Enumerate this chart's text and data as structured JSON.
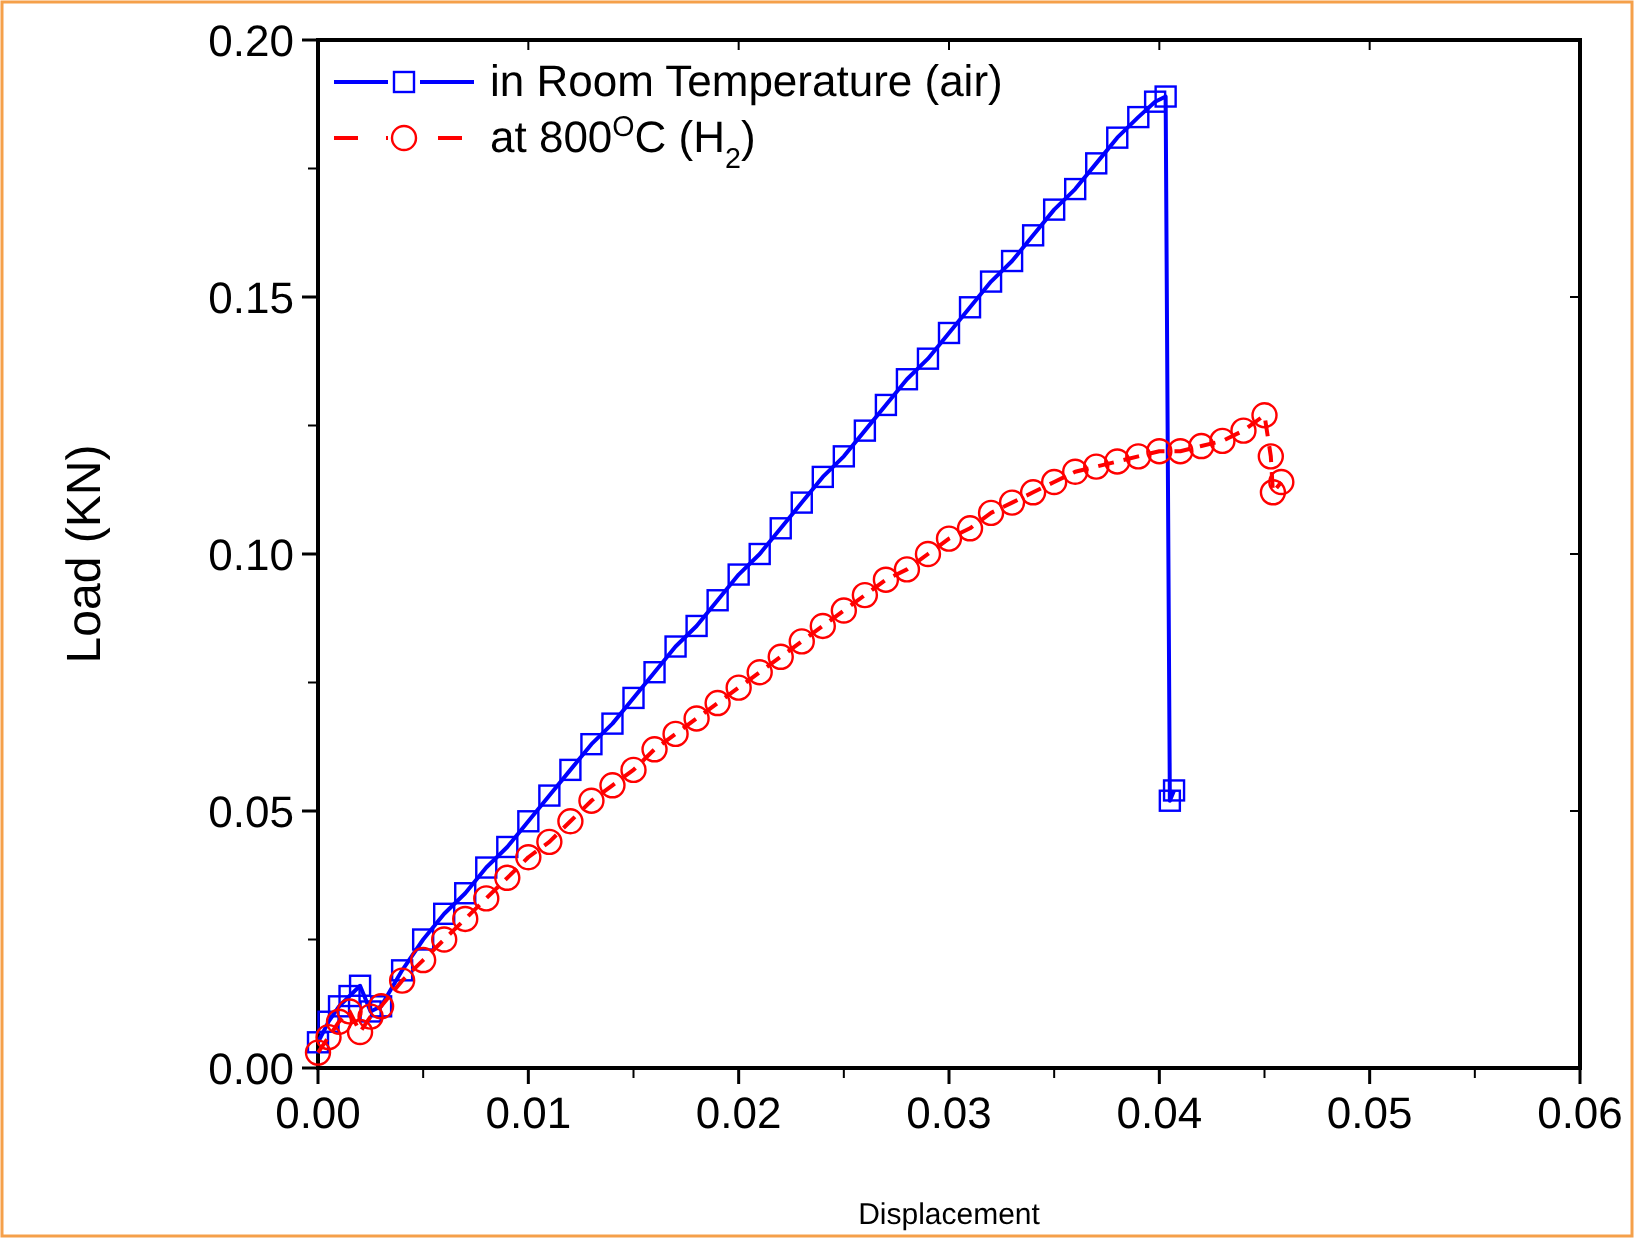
{
  "chart_data": {
    "type": "line",
    "xlabel": "Displacement",
    "ylabel": "Load (KN)",
    "xlim": [
      0,
      0.06
    ],
    "xticks": [
      {
        "value": 0,
        "label": "0.00"
      },
      0.01,
      0.02,
      0.03,
      0.04,
      0.05,
      0.06
    ],
    "ylim": [
      0,
      0.2
    ],
    "yticks": [
      {
        "value": 0,
        "label": "0.00"
      },
      0.05,
      {
        "value": 0.1,
        "label": "0.10"
      },
      0.15,
      {
        "value": 0.2,
        "label": "0.20"
      }
    ],
    "grid": false,
    "legend": "top left",
    "series": [
      {
        "name": "in Room Temperature (air)",
        "color": "#0000ff",
        "marker": "square",
        "line_style": "solid",
        "x": [
          0,
          0.0005,
          0.001,
          0.0015,
          0.002,
          0.0025,
          0.003,
          0.004,
          0.005,
          0.006,
          0.007,
          0.008,
          0.009,
          0.01,
          0.011,
          0.012,
          0.013,
          0.014,
          0.015,
          0.016,
          0.017,
          0.018,
          0.019,
          0.02,
          0.021,
          0.022,
          0.023,
          0.024,
          0.025,
          0.026,
          0.027,
          0.028,
          0.029,
          0.03,
          0.031,
          0.032,
          0.033,
          0.034,
          0.035,
          0.036,
          0.037,
          0.038,
          0.039,
          0.0398,
          0.0403,
          0.0405,
          0.0407
        ],
        "values": [
          0.005,
          0.009,
          0.012,
          0.014,
          0.016,
          0.011,
          0.012,
          0.019,
          0.025,
          0.03,
          0.034,
          0.039,
          0.043,
          0.048,
          0.053,
          0.058,
          0.063,
          0.067,
          0.072,
          0.077,
          0.082,
          0.086,
          0.091,
          0.096,
          0.1,
          0.105,
          0.11,
          0.115,
          0.119,
          0.124,
          0.129,
          0.134,
          0.138,
          0.143,
          0.148,
          0.153,
          0.157,
          0.162,
          0.167,
          0.171,
          0.176,
          0.181,
          0.185,
          0.188,
          0.189,
          0.052,
          0.054
        ]
      },
      {
        "name": "at 800$^{O}$C (H$_{2}$)",
        "color": "#ff0000",
        "marker": "circle",
        "line_style": "dashed",
        "x": [
          0,
          0.0005,
          0.001,
          0.0015,
          0.002,
          0.0025,
          0.003,
          0.004,
          0.005,
          0.006,
          0.007,
          0.008,
          0.009,
          0.01,
          0.011,
          0.012,
          0.013,
          0.014,
          0.015,
          0.016,
          0.017,
          0.018,
          0.019,
          0.02,
          0.021,
          0.022,
          0.023,
          0.024,
          0.025,
          0.026,
          0.027,
          0.028,
          0.029,
          0.03,
          0.031,
          0.032,
          0.033,
          0.034,
          0.035,
          0.036,
          0.037,
          0.038,
          0.039,
          0.04,
          0.041,
          0.042,
          0.043,
          0.044,
          0.045,
          0.0453,
          0.0454,
          0.0458
        ],
        "values": [
          0.003,
          0.006,
          0.009,
          0.011,
          0.007,
          0.01,
          0.012,
          0.017,
          0.021,
          0.025,
          0.029,
          0.033,
          0.037,
          0.041,
          0.044,
          0.048,
          0.052,
          0.055,
          0.058,
          0.062,
          0.065,
          0.068,
          0.071,
          0.074,
          0.077,
          0.08,
          0.083,
          0.086,
          0.089,
          0.092,
          0.095,
          0.097,
          0.1,
          0.103,
          0.105,
          0.108,
          0.11,
          0.112,
          0.114,
          0.116,
          0.117,
          0.118,
          0.119,
          0.12,
          0.12,
          0.121,
          0.122,
          0.124,
          0.127,
          0.119,
          0.112,
          0.114
        ]
      }
    ]
  }
}
